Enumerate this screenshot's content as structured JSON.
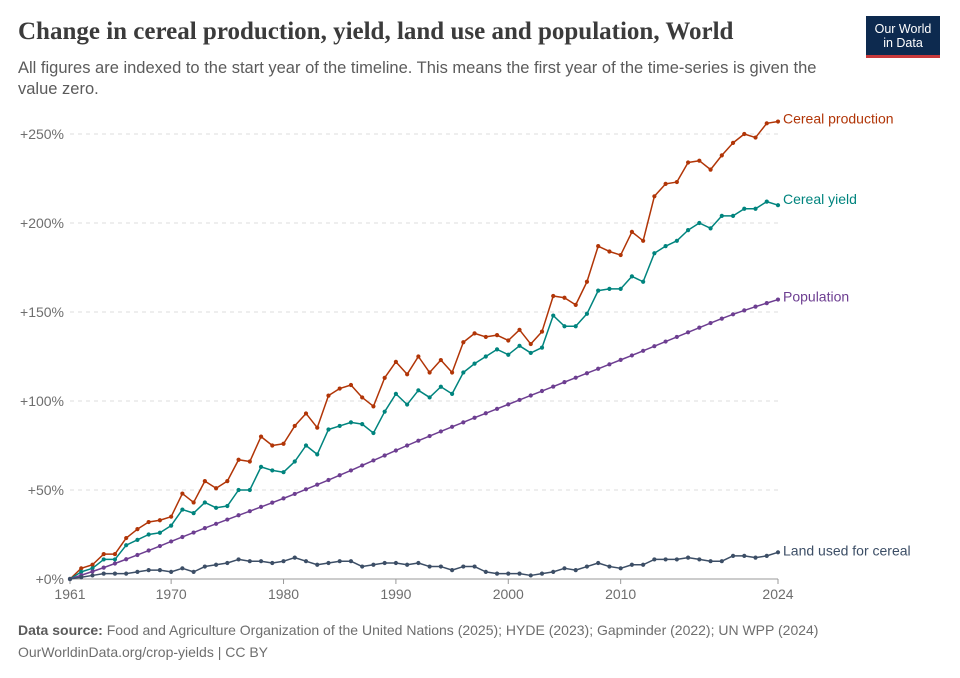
{
  "header": {
    "title": "Change in cereal production, yield, land use and population, World",
    "subtitle": "All figures are indexed to the start year of the timeline. This means the first year of the time-series is given the value zero.",
    "logo_line1": "Our World",
    "logo_line2": "in Data"
  },
  "footer": {
    "source_label": "Data source:",
    "source_text": "Food and Agriculture Organization of the United Nations (2025); HYDE (2023); Gapminder (2022); UN WPP (2024)",
    "url_text": "OurWorldinData.org/crop-yields | CC BY"
  },
  "chart_data": {
    "type": "line",
    "title": "Change in cereal production, yield, land use and population, World",
    "xlabel": "",
    "ylabel": "",
    "xlim": [
      1961,
      2024
    ],
    "ylim": [
      0,
      262
    ],
    "x_ticks": [
      1961,
      1970,
      1980,
      1990,
      2000,
      2010,
      2024
    ],
    "y_ticks": [
      {
        "value": 0,
        "label": "+0%"
      },
      {
        "value": 50,
        "label": "+50%"
      },
      {
        "value": 100,
        "label": "+100%"
      },
      {
        "value": 150,
        "label": "+150%"
      },
      {
        "value": 200,
        "label": "+200%"
      },
      {
        "value": 250,
        "label": "+250%"
      }
    ],
    "grid": "horizontal dashed",
    "legend": "labels at line ends, right",
    "x": [
      1961,
      1962,
      1963,
      1964,
      1965,
      1966,
      1967,
      1968,
      1969,
      1970,
      1971,
      1972,
      1973,
      1974,
      1975,
      1976,
      1977,
      1978,
      1979,
      1980,
      1981,
      1982,
      1983,
      1984,
      1985,
      1986,
      1987,
      1988,
      1989,
      1990,
      1991,
      1992,
      1993,
      1994,
      1995,
      1996,
      1997,
      1998,
      1999,
      2000,
      2001,
      2002,
      2003,
      2004,
      2005,
      2006,
      2007,
      2008,
      2009,
      2010,
      2011,
      2012,
      2013,
      2014,
      2015,
      2016,
      2017,
      2018,
      2019,
      2020,
      2021,
      2022,
      2023,
      2024
    ],
    "series": [
      {
        "name": "Cereal production",
        "color": "#b13507",
        "values": [
          0,
          6,
          8,
          14,
          14,
          23,
          28,
          32,
          33,
          35,
          48,
          43,
          55,
          51,
          55,
          67,
          66,
          80,
          75,
          76,
          86,
          93,
          85,
          103,
          107,
          109,
          102,
          97,
          113,
          122,
          115,
          125,
          116,
          123,
          116,
          133,
          138,
          136,
          137,
          134,
          140,
          132,
          139,
          159,
          158,
          154,
          167,
          187,
          184,
          182,
          195,
          190,
          215,
          222,
          223,
          234,
          235,
          230,
          238,
          245,
          250,
          248,
          256,
          257
        ]
      },
      {
        "name": "Cereal yield",
        "color": "#00847e",
        "values": [
          0,
          4,
          6,
          11,
          11,
          19,
          22,
          25,
          26,
          30,
          39,
          37,
          43,
          40,
          41,
          50,
          50,
          63,
          61,
          60,
          66,
          75,
          70,
          84,
          86,
          88,
          87,
          82,
          94,
          104,
          98,
          106,
          102,
          108,
          104,
          116,
          121,
          125,
          129,
          126,
          131,
          127,
          130,
          148,
          142,
          142,
          149,
          162,
          163,
          163,
          170,
          167,
          183,
          187,
          190,
          196,
          200,
          197,
          204,
          204,
          208,
          208,
          212,
          210
        ]
      },
      {
        "name": "Population",
        "color": "#6d3e91",
        "values": [
          0,
          2.1,
          4.2,
          6.4,
          8.7,
          11.1,
          13.5,
          16.0,
          18.5,
          21.1,
          23.6,
          26.1,
          28.6,
          31.0,
          33.4,
          35.8,
          38.1,
          40.5,
          42.9,
          45.3,
          47.8,
          50.4,
          53.0,
          55.6,
          58.3,
          61.0,
          63.8,
          66.6,
          69.4,
          72.2,
          75.0,
          77.7,
          80.3,
          82.9,
          85.5,
          88.0,
          90.6,
          93.1,
          95.6,
          98.1,
          100.6,
          103.1,
          105.6,
          108.1,
          110.6,
          113.1,
          115.6,
          118.1,
          120.6,
          123.1,
          125.6,
          128.2,
          130.8,
          133.4,
          136.0,
          138.6,
          141.2,
          143.8,
          146.3,
          148.7,
          150.9,
          153.0,
          155.0,
          157.0
        ]
      },
      {
        "name": "Land used for cereal",
        "color": "#3c4e66",
        "values": [
          0,
          1,
          2,
          3,
          3,
          3,
          4,
          5,
          5,
          4,
          6,
          4,
          7,
          8,
          9,
          11,
          10,
          10,
          9,
          10,
          12,
          10,
          8,
          9,
          10,
          10,
          7,
          8,
          9,
          9,
          8,
          9,
          7,
          7,
          5,
          7,
          7,
          4,
          3,
          3,
          3,
          2,
          3,
          4,
          6,
          5,
          7,
          9,
          7,
          6,
          8,
          8,
          11,
          11,
          11,
          12,
          11,
          10,
          10,
          13,
          13,
          12,
          13,
          15
        ]
      }
    ]
  }
}
